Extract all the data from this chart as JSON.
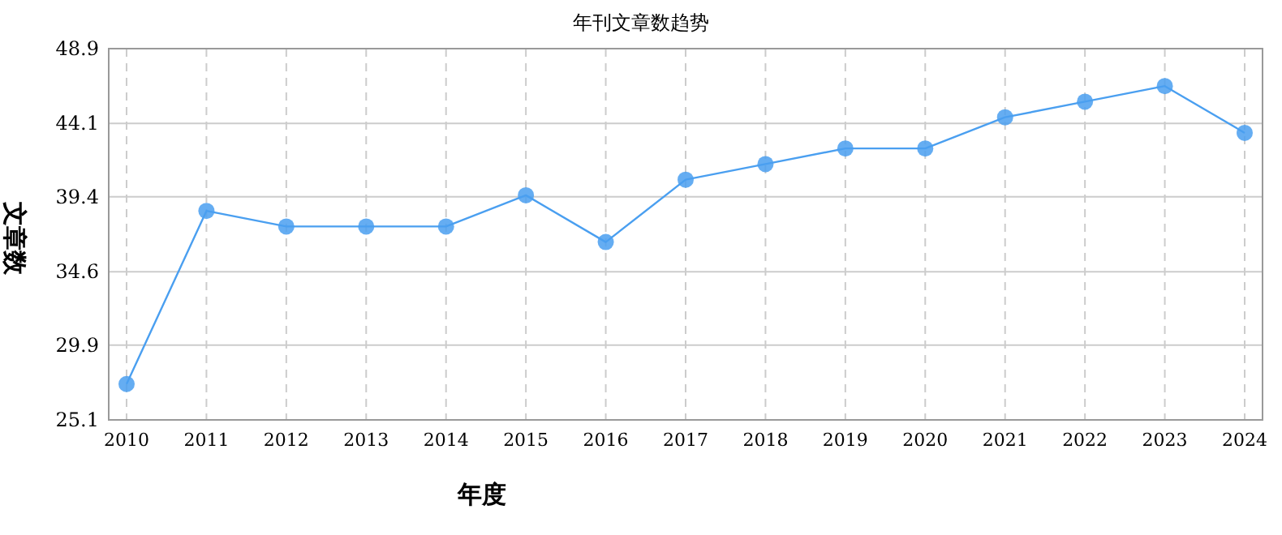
{
  "chart_data": {
    "type": "line",
    "title": "年刊文章数趋势",
    "xlabel": "年度",
    "ylabel": "文章数",
    "categories": [
      "2010",
      "2011",
      "2012",
      "2013",
      "2014",
      "2015",
      "2016",
      "2017",
      "2018",
      "2019",
      "2020",
      "2021",
      "2022",
      "2023",
      "2024"
    ],
    "series": [
      {
        "color": "#4a9ff0",
        "values": [
          27.4,
          38.5,
          37.5,
          37.5,
          37.5,
          39.5,
          36.5,
          40.5,
          41.5,
          42.5,
          42.5,
          44.5,
          45.5,
          46.5,
          43.5
        ]
      }
    ],
    "ylim": [
      25.1,
      48.9
    ],
    "yticks": [
      25.1,
      29.9,
      34.6,
      39.4,
      44.1,
      48.9
    ],
    "grid": true,
    "marker": "circle",
    "line_style": "solid"
  }
}
